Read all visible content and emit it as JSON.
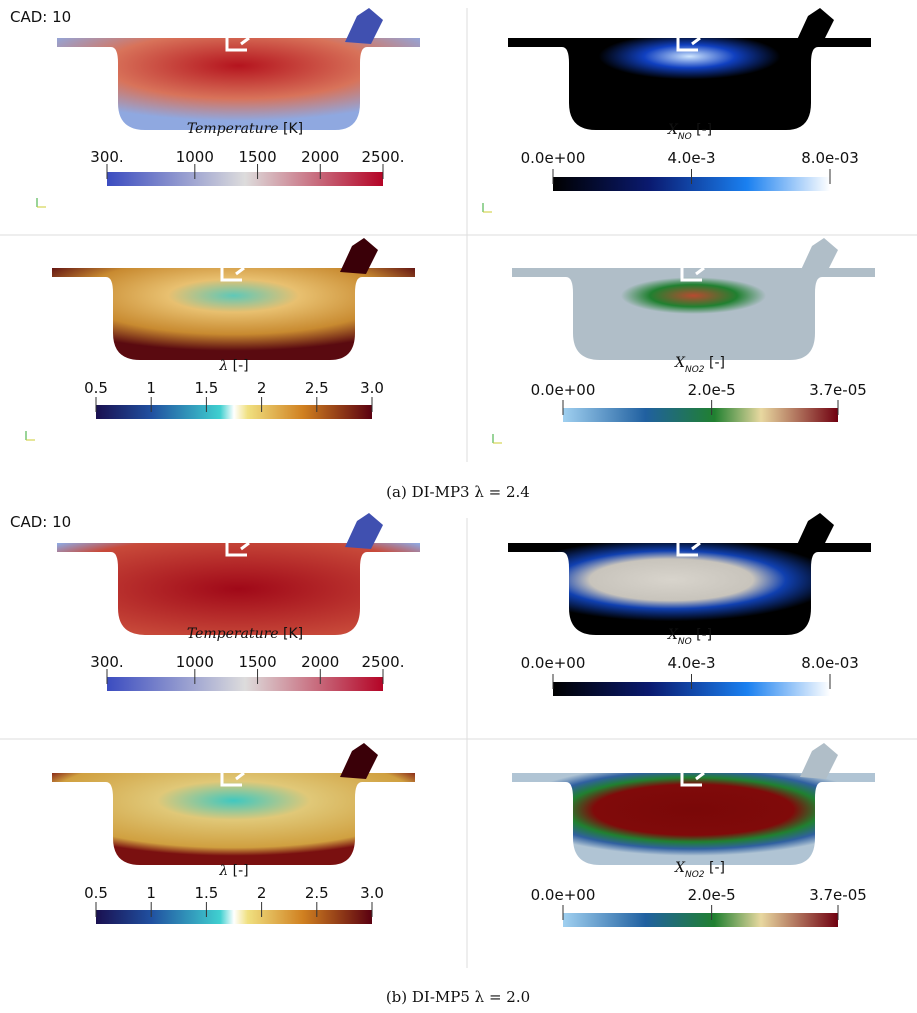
{
  "figures": [
    {
      "cad_label": "CAD: 10",
      "caption": "(a) DI-MP3 λ = 2.4",
      "panels": [
        {
          "symbol": "Temperature",
          "unit": "[K]",
          "ticks": [
            {
              "value": 300,
              "label": "300."
            },
            1000,
            1500,
            2000,
            {
              "value": 2500,
              "label": "2500."
            }
          ]
        },
        {
          "symbol": "X",
          "subscript": "NO",
          "unit": "[-]",
          "ticks": [
            {
              "value": 0,
              "label": "0.0e+00"
            },
            {
              "value": 0.004,
              "label": "4.0e-3"
            },
            {
              "value": 0.008,
              "label": "8.0e-03"
            }
          ]
        },
        {
          "symbol": "λ",
          "unit": "[-]",
          "ticks": [
            0.5,
            1,
            1.5,
            2,
            2.5,
            {
              "value": 3,
              "label": "3.0"
            }
          ]
        },
        {
          "symbol": "X",
          "subscript": "NO2",
          "unit": "[-]",
          "ticks": [
            {
              "value": 0,
              "label": "0.0e+00"
            },
            {
              "value": 2e-05,
              "label": "2.0e-5"
            },
            {
              "value": 3.7e-05,
              "label": "3.7e-05"
            }
          ]
        }
      ]
    },
    {
      "cad_label": "CAD: 10",
      "caption": "(b) DI-MP5 λ = 2.0",
      "panels": [
        {
          "symbol": "Temperature",
          "unit": "[K]",
          "ticks": [
            {
              "value": 300,
              "label": "300."
            },
            1000,
            1500,
            2000,
            {
              "value": 2500,
              "label": "2500."
            }
          ]
        },
        {
          "symbol": "X",
          "subscript": "NO",
          "unit": "[-]",
          "ticks": [
            {
              "value": 0,
              "label": "0.0e+00"
            },
            {
              "value": 0.004,
              "label": "4.0e-3"
            },
            {
              "value": 0.008,
              "label": "8.0e-03"
            }
          ]
        },
        {
          "symbol": "λ",
          "unit": "[-]",
          "ticks": [
            0.5,
            1,
            1.5,
            2,
            2.5,
            {
              "value": 3,
              "label": "3.0"
            }
          ]
        },
        {
          "symbol": "X",
          "subscript": "NO2",
          "unit": "[-]",
          "ticks": [
            {
              "value": 0,
              "label": "0.0e+00"
            },
            {
              "value": 2e-05,
              "label": "2.0e-5"
            },
            {
              "value": 3.7e-05,
              "label": "3.7e-05"
            }
          ]
        }
      ]
    }
  ]
}
